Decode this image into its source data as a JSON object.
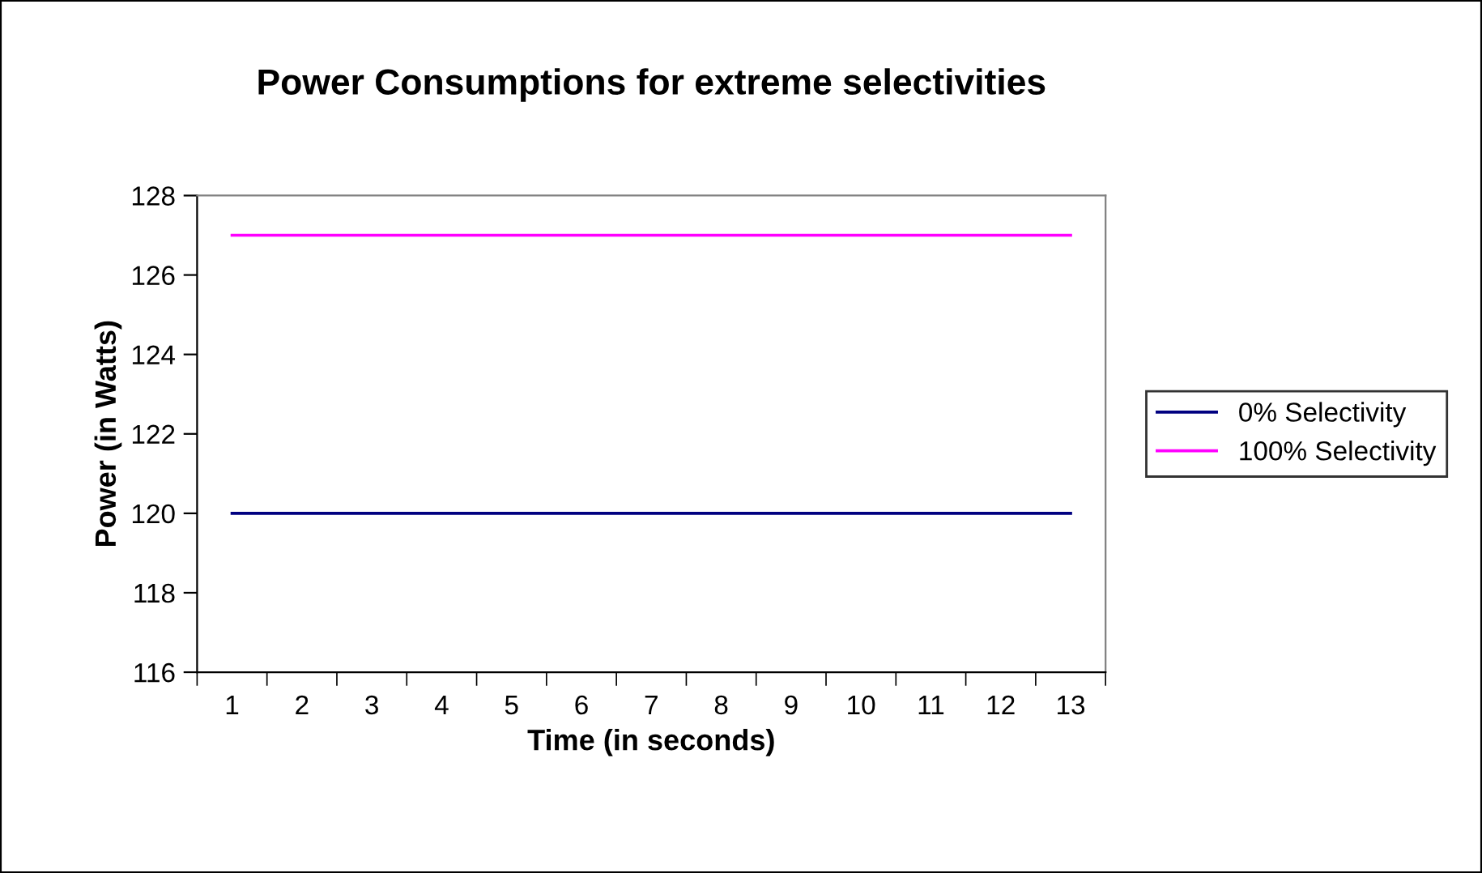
{
  "chart_data": {
    "type": "line",
    "title": "Power Consumptions for extreme selectivities",
    "xlabel": "Time (in seconds)",
    "ylabel": "Power (in Watts)",
    "categories": [
      "1",
      "2",
      "3",
      "4",
      "5",
      "6",
      "7",
      "8",
      "9",
      "10",
      "11",
      "12",
      "13"
    ],
    "series": [
      {
        "name": "0% Selectivity",
        "color": "#000080",
        "values": [
          120,
          120,
          120,
          120,
          120,
          120,
          120,
          120,
          120,
          120,
          120,
          120,
          120
        ]
      },
      {
        "name": "100% Selectivity",
        "color": "#ff00ff",
        "values": [
          127,
          127,
          127,
          127,
          127,
          127,
          127,
          127,
          127,
          127,
          127,
          127,
          127
        ]
      }
    ],
    "ylim": [
      116,
      128
    ],
    "yticks": [
      116,
      118,
      120,
      122,
      124,
      126,
      128
    ],
    "grid": false,
    "legend": "right",
    "marker": "none",
    "line_style": "solid"
  }
}
